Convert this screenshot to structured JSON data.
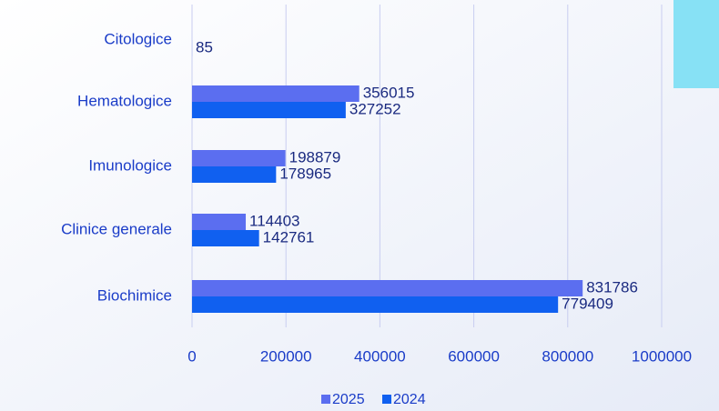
{
  "chart_data": {
    "type": "bar",
    "orientation": "horizontal",
    "categories": [
      "Citologice",
      "Hematologice",
      "Imunologice",
      "Clinice generale",
      "Biochimice"
    ],
    "series": [
      {
        "name": "2025",
        "color": "#5b6ef0",
        "values": [
          null,
          356015,
          198879,
          114403,
          831786
        ]
      },
      {
        "name": "2024",
        "color": "#1060f0",
        "values": [
          85,
          327252,
          178965,
          142761,
          779409
        ]
      }
    ],
    "xlim": [
      0,
      1000000
    ],
    "xticks": [
      0,
      200000,
      400000,
      600000,
      800000,
      1000000
    ],
    "grid": true,
    "legend": "bottom"
  }
}
